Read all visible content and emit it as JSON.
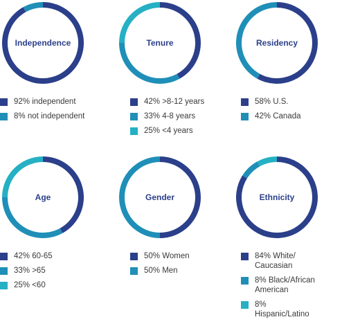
{
  "colors": {
    "navy": "#2b3f8a",
    "teal": "#1f8fb8",
    "cyan": "#25b0c3"
  },
  "chart_data": [
    {
      "type": "pie",
      "title": "Independence",
      "hole": true,
      "slices": [
        {
          "label": "92% independent",
          "value": 92,
          "color": "#2b3f8a"
        },
        {
          "label": "8% not independent",
          "value": 8,
          "color": "#1f8fb8"
        }
      ]
    },
    {
      "type": "pie",
      "title": "Tenure",
      "hole": true,
      "slices": [
        {
          "label": "42% >8-12 years",
          "value": 42,
          "color": "#2b3f8a"
        },
        {
          "label": "33% 4-8 years",
          "value": 33,
          "color": "#1f8fb8"
        },
        {
          "label": "25% <4 years",
          "value": 25,
          "color": "#25b0c3"
        }
      ]
    },
    {
      "type": "pie",
      "title": "Residency",
      "hole": true,
      "slices": [
        {
          "label": "58% U.S.",
          "value": 58,
          "color": "#2b3f8a"
        },
        {
          "label": "42% Canada",
          "value": 42,
          "color": "#1f8fb8"
        }
      ]
    },
    {
      "type": "pie",
      "title": "Age",
      "hole": true,
      "slices": [
        {
          "label": "42% 60-65",
          "value": 42,
          "color": "#2b3f8a"
        },
        {
          "label": "33% >65",
          "value": 33,
          "color": "#1f8fb8"
        },
        {
          "label": "25% <60",
          "value": 25,
          "color": "#25b0c3"
        }
      ]
    },
    {
      "type": "pie",
      "title": "Gender",
      "hole": true,
      "slices": [
        {
          "label": "50% Women",
          "value": 50,
          "color": "#2b3f8a"
        },
        {
          "label": "50% Men",
          "value": 50,
          "color": "#1f8fb8"
        }
      ]
    },
    {
      "type": "pie",
      "title": "Ethnicity",
      "hole": true,
      "slices": [
        {
          "label": "84% White/ Caucasian",
          "value": 84,
          "color": "#2b3f8a"
        },
        {
          "label": "8% Black/African American",
          "value": 8,
          "color": "#1f8fb8"
        },
        {
          "label": "8% Hispanic/Latino",
          "value": 8,
          "color": "#25b0c3"
        }
      ]
    }
  ]
}
